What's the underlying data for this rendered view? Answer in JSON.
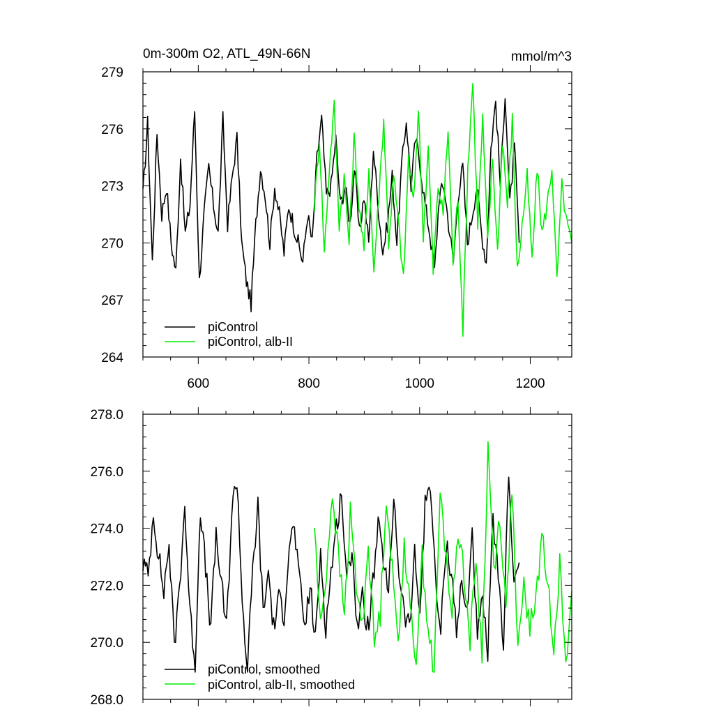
{
  "chart_data": [
    {
      "type": "line",
      "title": "0m-300m O2, ATL_49N-66N",
      "units": "mmol/m^3",
      "xlim": [
        500,
        1275
      ],
      "ylim": [
        264,
        279
      ],
      "xticks": [
        600,
        800,
        1000,
        1200
      ],
      "xtick_labels": [
        "600",
        "800",
        "1000",
        "1200"
      ],
      "yticks": [
        264,
        267,
        270,
        273,
        276,
        279
      ],
      "ytick_labels": [
        "264",
        "267",
        "270",
        "273",
        "276",
        "279"
      ],
      "legend": {
        "position": "lower-left",
        "entries": [
          "piControl",
          "piControl, alb-II"
        ]
      },
      "series": [
        {
          "name": "piControl",
          "color": "#000000",
          "x_start": 500,
          "x_end": 1180,
          "anchors": [
            272.5,
            276.3,
            269.0,
            275.8,
            271.5,
            273.0,
            270.0,
            268.5,
            274.5,
            270.5,
            272.0,
            277.0,
            268.0,
            271.5,
            274.0,
            272.0,
            270.5,
            276.5,
            271.0,
            273.5,
            275.5,
            270.0,
            268.0,
            266.8,
            271.0,
            274.0,
            272.5,
            270.0,
            273.0,
            271.5,
            269.5,
            272.0,
            271.0,
            270.0,
            269.0,
            271.5,
            270.0,
            274.5,
            276.5,
            272.5,
            273.0,
            275.5,
            272.0,
            273.0,
            271.0,
            274.0,
            270.5,
            272.5,
            270.0,
            275.0,
            272.0,
            269.5,
            271.0,
            273.5,
            270.0,
            274.0,
            276.5,
            273.0,
            275.5,
            274.0,
            272.0,
            270.5,
            268.5,
            272.5,
            273.0,
            271.0,
            269.0,
            272.5,
            274.0,
            270.0,
            271.5,
            273.0,
            270.5,
            269.0,
            275.0,
            277.5,
            273.0,
            278.0,
            272.0,
            275.0,
            270.0
          ]
        },
        {
          "name": "piControl, alb-II",
          "color": "#00ee00",
          "x_start": 810,
          "x_end": 1275,
          "anchors": [
            272.0,
            275.5,
            269.5,
            274.0,
            277.2,
            271.0,
            273.5,
            270.0,
            275.5,
            272.0,
            269.5,
            274.0,
            268.5,
            272.5,
            276.5,
            270.0,
            273.5,
            271.0,
            268.0,
            274.5,
            272.0,
            277.0,
            270.5,
            275.0,
            268.5,
            273.0,
            271.5,
            276.0,
            269.0,
            272.5,
            265.5,
            274.0,
            278.5,
            271.0,
            276.5,
            270.0,
            274.5,
            269.5,
            275.5,
            272.0,
            276.5,
            268.5,
            271.0,
            273.5,
            269.0,
            274.0,
            270.5,
            272.0,
            274.0,
            268.0,
            273.0,
            271.0,
            270.0
          ]
        }
      ]
    },
    {
      "type": "line",
      "xlim": [
        500,
        1275
      ],
      "ylim": [
        268.0,
        278.0
      ],
      "xticks": [
        600,
        800,
        1000,
        1200
      ],
      "yticks": [
        268.0,
        270.0,
        272.0,
        274.0,
        276.0,
        278.0
      ],
      "ytick_labels": [
        "268.0",
        "270.0",
        "272.0",
        "274.0",
        "276.0",
        "278.0"
      ],
      "legend": {
        "position": "lower-left",
        "entries": [
          "piControl, smoothed",
          "piControl, alb-II, smoothed"
        ]
      },
      "series": [
        {
          "name": "piControl, smoothed",
          "color": "#000000",
          "x_start": 500,
          "x_end": 1180,
          "anchors": [
            272.8,
            272.3,
            274.6,
            273.0,
            271.8,
            273.5,
            269.8,
            272.0,
            274.8,
            271.0,
            269.3,
            274.8,
            272.5,
            270.5,
            273.8,
            272.0,
            270.5,
            274.6,
            275.8,
            271.5,
            269.0,
            272.5,
            274.8,
            271.0,
            272.5,
            270.5,
            271.5,
            271.0,
            273.5,
            274.0,
            272.0,
            270.5,
            272.0,
            270.0,
            273.2,
            270.5,
            272.5,
            274.0,
            275.3,
            272.0,
            273.5,
            270.5,
            271.5,
            270.5,
            272.0,
            274.0,
            273.0,
            271.5,
            275.2,
            272.5,
            271.0,
            270.5,
            273.0,
            271.0,
            274.8,
            275.7,
            272.0,
            270.3,
            273.5,
            272.5,
            270.5,
            272.0,
            271.0,
            274.0,
            270.0,
            271.5,
            269.5,
            274.5,
            272.0,
            270.0,
            276.2,
            272.0,
            272.8
          ]
        },
        {
          "name": "piControl, alb-II, smoothed",
          "color": "#00ee00",
          "x_start": 810,
          "x_end": 1275,
          "anchors": [
            274.1,
            270.5,
            272.5,
            275.3,
            273.0,
            271.0,
            274.5,
            272.0,
            270.5,
            273.5,
            270.0,
            271.0,
            275.2,
            272.5,
            270.0,
            273.5,
            271.0,
            269.5,
            273.0,
            270.5,
            268.9,
            275.2,
            273.0,
            271.0,
            274.0,
            272.5,
            270.0,
            273.0,
            269.5,
            276.8,
            272.5,
            274.5,
            271.0,
            275.5,
            269.5,
            272.0,
            270.5,
            271.5,
            273.7,
            272.0,
            270.0,
            272.8,
            269.0,
            271.8
          ]
        }
      ]
    }
  ]
}
